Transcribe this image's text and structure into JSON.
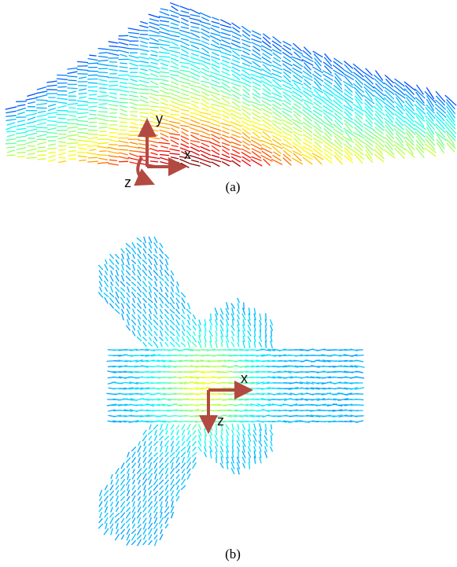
{
  "panels": [
    {
      "caption": "(a)",
      "axes": [
        "y",
        "x",
        "z"
      ]
    },
    {
      "caption": "(b)",
      "axes": [
        "x",
        "z"
      ]
    }
  ]
}
